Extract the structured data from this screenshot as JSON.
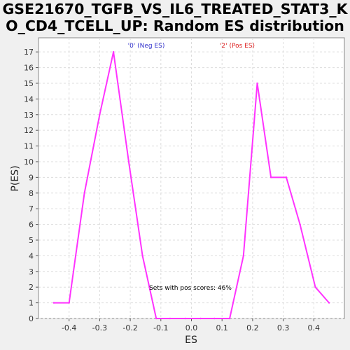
{
  "title_line1": "GSE21670_TGFB_VS_IL6_TREATED_STAT3_K",
  "title_line2": "O_CD4_TCELL_UP: Random ES distribution",
  "chart_data": {
    "type": "line",
    "xlabel": "ES",
    "ylabel": "P(ES)",
    "xlim": [
      -0.5,
      0.5
    ],
    "ylim": [
      0,
      17.9
    ],
    "xticks": [
      -0.4,
      -0.3,
      -0.2,
      -0.1,
      0.0,
      0.1,
      0.2,
      0.3,
      0.4
    ],
    "xtick_labels": [
      "-0.4",
      "-0.3",
      "-0.2",
      "-0.1",
      "0.0",
      "0.1",
      "0.2",
      "0.3",
      "0.4"
    ],
    "yticks": [
      0,
      1,
      2,
      3,
      4,
      5,
      6,
      7,
      8,
      9,
      10,
      11,
      12,
      13,
      14,
      15,
      16,
      17
    ],
    "grid": true,
    "series": [
      {
        "color": "#ff33ff",
        "x": [
          -0.45,
          -0.4,
          -0.35,
          -0.3,
          -0.255,
          -0.205,
          -0.16,
          -0.115,
          -0.07,
          -0.02,
          0.03,
          0.075,
          0.125,
          0.17,
          0.215,
          0.26,
          0.31,
          0.355,
          0.405,
          0.45
        ],
        "y": [
          1,
          1,
          8,
          13,
          17,
          10,
          4,
          0,
          0,
          0,
          0,
          0,
          0,
          4,
          15,
          9,
          9,
          6,
          2,
          1
        ]
      }
    ],
    "annotations": [
      {
        "text": "'0' (Neg ES)",
        "color": "#3333cc"
      },
      {
        "text": "'2' (Pos ES)",
        "color": "#dd2222"
      },
      {
        "text": "Sets with pos scores: 46%",
        "color": "#000000"
      }
    ]
  }
}
